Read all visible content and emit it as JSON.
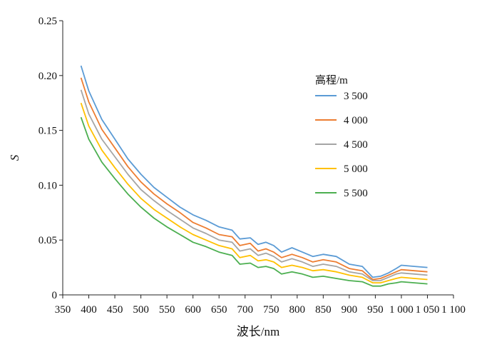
{
  "chart_data": {
    "type": "line",
    "xlabel": "波长/nm",
    "ylabel": "S",
    "xlim": [
      350,
      1100
    ],
    "ylim": [
      0,
      0.25
    ],
    "x_ticks": [
      "350",
      "400",
      "450",
      "500",
      "550",
      "600",
      "650",
      "700",
      "750",
      "800",
      "850",
      "900",
      "950",
      "1 000",
      "1 050",
      "1 100"
    ],
    "y_ticks": [
      "0",
      "0.05",
      "0.10",
      "0.15",
      "0.20",
      "0.25"
    ],
    "legend_title": "高程/m",
    "legend_position": "right",
    "grid": false,
    "x": [
      385,
      400,
      425,
      450,
      475,
      500,
      525,
      550,
      575,
      600,
      625,
      650,
      675,
      690,
      710,
      725,
      740,
      755,
      770,
      790,
      810,
      830,
      850,
      875,
      900,
      925,
      945,
      960,
      975,
      990,
      1000,
      1025,
      1050
    ],
    "series": [
      {
        "name": "3 500",
        "color": "#5b9bd5",
        "values": [
          0.209,
          0.186,
          0.16,
          0.142,
          0.124,
          0.11,
          0.098,
          0.089,
          0.08,
          0.073,
          0.068,
          0.062,
          0.059,
          0.051,
          0.052,
          0.046,
          0.048,
          0.045,
          0.039,
          0.043,
          0.039,
          0.035,
          0.037,
          0.035,
          0.028,
          0.026,
          0.016,
          0.017,
          0.02,
          0.024,
          0.027,
          0.026,
          0.025
        ]
      },
      {
        "name": "4 000",
        "color": "#ed7d31",
        "values": [
          0.198,
          0.176,
          0.151,
          0.134,
          0.117,
          0.103,
          0.092,
          0.083,
          0.075,
          0.066,
          0.061,
          0.055,
          0.053,
          0.045,
          0.047,
          0.04,
          0.042,
          0.039,
          0.034,
          0.037,
          0.034,
          0.03,
          0.032,
          0.03,
          0.024,
          0.022,
          0.014,
          0.015,
          0.018,
          0.021,
          0.023,
          0.022,
          0.021
        ]
      },
      {
        "name": "4 500",
        "color": "#a5a5a5",
        "values": [
          0.187,
          0.165,
          0.142,
          0.126,
          0.11,
          0.096,
          0.086,
          0.077,
          0.069,
          0.061,
          0.056,
          0.05,
          0.048,
          0.04,
          0.042,
          0.036,
          0.038,
          0.035,
          0.03,
          0.033,
          0.03,
          0.026,
          0.028,
          0.026,
          0.021,
          0.019,
          0.013,
          0.013,
          0.016,
          0.019,
          0.02,
          0.019,
          0.018
        ]
      },
      {
        "name": "5 000",
        "color": "#ffc000",
        "values": [
          0.175,
          0.154,
          0.132,
          0.116,
          0.101,
          0.088,
          0.078,
          0.07,
          0.062,
          0.055,
          0.05,
          0.045,
          0.042,
          0.034,
          0.036,
          0.031,
          0.032,
          0.03,
          0.025,
          0.027,
          0.025,
          0.022,
          0.023,
          0.021,
          0.018,
          0.016,
          0.011,
          0.011,
          0.013,
          0.015,
          0.016,
          0.015,
          0.014
        ]
      },
      {
        "name": "5 500",
        "color": "#4caf50",
        "values": [
          0.162,
          0.142,
          0.121,
          0.106,
          0.092,
          0.08,
          0.07,
          0.062,
          0.055,
          0.048,
          0.044,
          0.039,
          0.036,
          0.028,
          0.029,
          0.025,
          0.026,
          0.024,
          0.019,
          0.021,
          0.019,
          0.016,
          0.017,
          0.015,
          0.013,
          0.012,
          0.008,
          0.008,
          0.01,
          0.011,
          0.012,
          0.011,
          0.01
        ]
      }
    ]
  }
}
